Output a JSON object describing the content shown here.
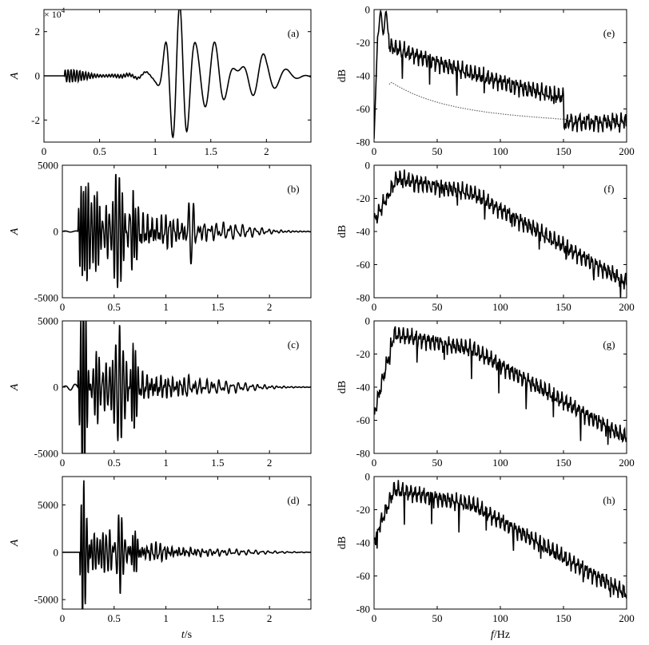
{
  "chart_data": [
    {
      "id": "a",
      "type": "line",
      "panel_label": "(a)",
      "ylabel": "A",
      "xlabel": "",
      "scale_note": "× 10",
      "scale_exp": "4",
      "xlim": [
        0,
        2.4
      ],
      "ylim": [
        -3,
        3
      ],
      "xticks": [
        0,
        0.5,
        1,
        1.5,
        2
      ],
      "xticklabels": [
        "0",
        "0.5",
        "1",
        "1.5",
        "2"
      ],
      "yticks": [
        -2,
        0,
        2
      ],
      "yticklabels": [
        "-2",
        "0",
        "2"
      ],
      "series": [
        {
          "values": []
        }
      ]
    },
    {
      "id": "b",
      "type": "line",
      "panel_label": "(b)",
      "ylabel": "A",
      "xlabel": "",
      "xlim": [
        0,
        2.4
      ],
      "ylim": [
        -5000,
        5000
      ],
      "xticks": [
        0,
        0.5,
        1,
        1.5,
        2
      ],
      "xticklabels": [
        "0",
        "0.5",
        "1",
        "1.5",
        "2"
      ],
      "yticks": [
        -5000,
        0,
        5000
      ],
      "yticklabels": [
        "-5000",
        "0",
        "5000"
      ],
      "series": [
        {
          "values": []
        }
      ]
    },
    {
      "id": "c",
      "type": "line",
      "panel_label": "(c)",
      "ylabel": "A",
      "xlabel": "",
      "xlim": [
        0,
        2.4
      ],
      "ylim": [
        -5000,
        5000
      ],
      "xticks": [
        0,
        0.5,
        1,
        1.5,
        2
      ],
      "xticklabels": [
        "0",
        "0.5",
        "1",
        "1.5",
        "2"
      ],
      "yticks": [
        -5000,
        0,
        5000
      ],
      "yticklabels": [
        "-5000",
        "0",
        "5000"
      ],
      "series": [
        {
          "values": []
        }
      ]
    },
    {
      "id": "d",
      "type": "line",
      "panel_label": "(d)",
      "ylabel": "A",
      "xlabel": "t/s",
      "xlim": [
        0,
        2.4
      ],
      "ylim": [
        -6000,
        8000
      ],
      "xticks": [
        0,
        0.5,
        1,
        1.5,
        2
      ],
      "xticklabels": [
        "0",
        "0.5",
        "1",
        "1.5",
        "2"
      ],
      "yticks": [
        -5000,
        0,
        5000
      ],
      "yticklabels": [
        "-5000",
        "0",
        "5000"
      ],
      "series": [
        {
          "values": []
        }
      ]
    },
    {
      "id": "e",
      "type": "line",
      "panel_label": "(e)",
      "ylabel": "dB",
      "xlabel": "",
      "xlim": [
        0,
        200
      ],
      "ylim": [
        -80,
        0
      ],
      "xticks": [
        0,
        50,
        100,
        150,
        200
      ],
      "xticklabels": [
        "0",
        "50",
        "100",
        "150",
        "200"
      ],
      "yticks": [
        -80,
        -60,
        -40,
        -20,
        0
      ],
      "yticklabels": [
        "-80",
        "-60",
        "-40",
        "-20",
        "0"
      ],
      "series": [
        {
          "style": "solid",
          "values": []
        },
        {
          "style": "dotted",
          "values": []
        }
      ]
    },
    {
      "id": "f",
      "type": "line",
      "panel_label": "(f)",
      "ylabel": "dB",
      "xlabel": "",
      "xlim": [
        0,
        200
      ],
      "ylim": [
        -80,
        0
      ],
      "xticks": [
        0,
        50,
        100,
        150,
        200
      ],
      "xticklabels": [
        "0",
        "50",
        "100",
        "150",
        "200"
      ],
      "yticks": [
        -80,
        -60,
        -40,
        -20,
        0
      ],
      "yticklabels": [
        "-80",
        "-60",
        "-40",
        "-20",
        "0"
      ],
      "series": [
        {
          "values": []
        }
      ]
    },
    {
      "id": "g",
      "type": "line",
      "panel_label": "(g)",
      "ylabel": "dB",
      "xlabel": "",
      "xlim": [
        0,
        200
      ],
      "ylim": [
        -80,
        0
      ],
      "xticks": [
        0,
        50,
        100,
        150,
        200
      ],
      "xticklabels": [
        "0",
        "50",
        "100",
        "150",
        "200"
      ],
      "yticks": [
        -80,
        -60,
        -40,
        -20,
        0
      ],
      "yticklabels": [
        "-80",
        "-60",
        "-40",
        "-20",
        "0"
      ],
      "series": [
        {
          "values": []
        }
      ]
    },
    {
      "id": "h",
      "type": "line",
      "panel_label": "(h)",
      "ylabel": "dB",
      "xlabel": "f/Hz",
      "xlim": [
        0,
        200
      ],
      "ylim": [
        -80,
        0
      ],
      "xticks": [
        0,
        50,
        100,
        150,
        200
      ],
      "xticklabels": [
        "0",
        "50",
        "100",
        "150",
        "200"
      ],
      "yticks": [
        -80,
        -60,
        -40,
        -20,
        0
      ],
      "yticklabels": [
        "-80",
        "-60",
        "-40",
        "-20",
        "0"
      ],
      "series": [
        {
          "values": []
        }
      ]
    }
  ]
}
